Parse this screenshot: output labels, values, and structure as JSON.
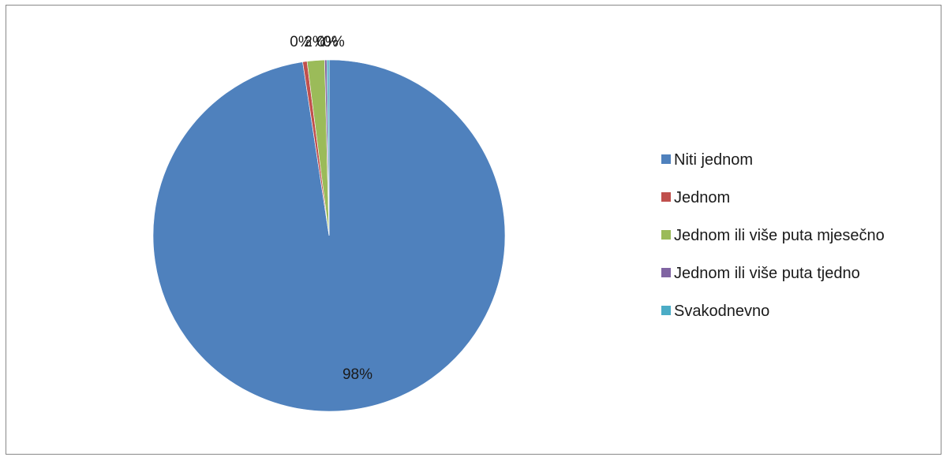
{
  "chart_data": {
    "type": "pie",
    "categories": [
      "Niti jednom",
      "Jednom",
      "Jednom ili više puta mjesečno",
      "Jednom ili više puta tjedno",
      "Svakodnevno"
    ],
    "values": [
      97.6,
      0.4,
      1.6,
      0.2,
      0.2
    ],
    "data_labels": [
      "98%",
      "0%",
      "2%",
      "0%",
      "0%"
    ],
    "colors": [
      "#4f81bd",
      "#c0504d",
      "#9bbb59",
      "#8064a2",
      "#4bacc6"
    ],
    "start_angle_deg": 0,
    "direction": "clockwise",
    "legend_position": "right"
  }
}
